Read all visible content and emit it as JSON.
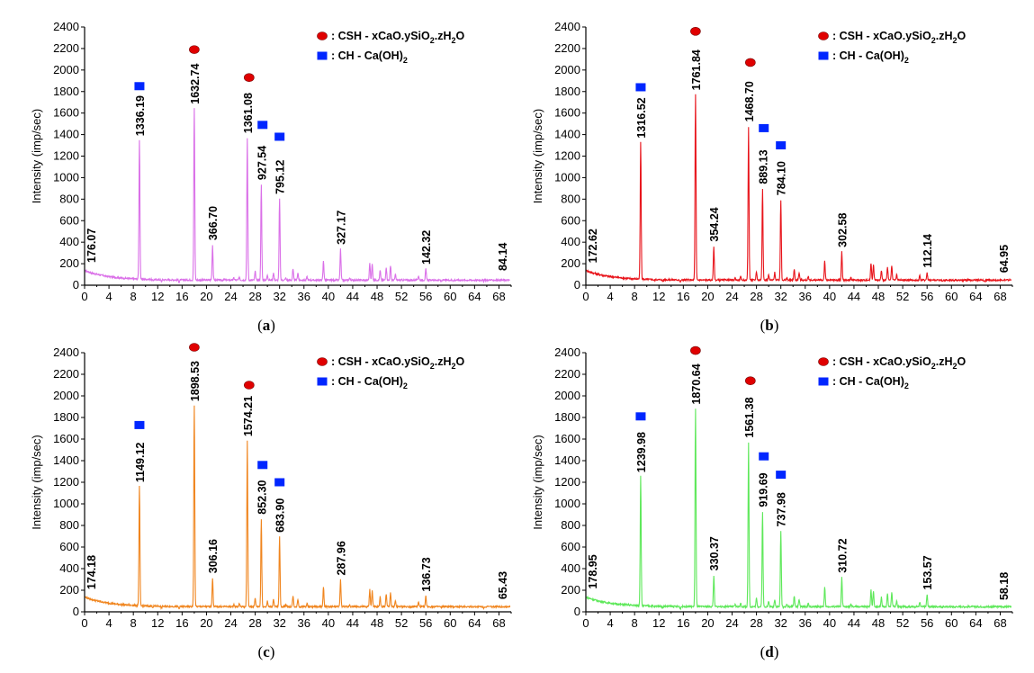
{
  "chart_data": [
    {
      "type": "line",
      "caption_pre": "(",
      "caption_letter": "a",
      "caption_post": ")",
      "color": "#da70e8",
      "ylabel": "Intensity (imp/sec)",
      "xlim": [
        0,
        70
      ],
      "ylim": [
        0,
        2400
      ],
      "xticks": [
        0,
        4,
        8,
        12,
        16,
        20,
        24,
        28,
        32,
        36,
        40,
        44,
        48,
        52,
        56,
        60,
        64,
        68
      ],
      "yticks": [
        0,
        200,
        400,
        600,
        800,
        1000,
        1200,
        1400,
        1600,
        1800,
        2000,
        2200,
        2400
      ],
      "legend": [
        {
          "marker": "csh-circle",
          "color": "#e00000",
          "prefix": ": CSH - xCaO.ySiO",
          "sub1": "2",
          "mid": ".zH",
          "sub2": "2",
          "suffix": "O"
        },
        {
          "marker": "ch-square",
          "color": "#0026ff",
          "prefix": ": CH - Ca(OH)",
          "sub1": "2"
        }
      ],
      "series": [
        {
          "name": "background",
          "peaks": [
            {
              "x": 9.0,
              "y": 1336.19
            },
            {
              "x": 18.0,
              "y": 1632.74
            },
            {
              "x": 21.0,
              "y": 366.7
            },
            {
              "x": 26.7,
              "y": 1361.08
            },
            {
              "x": 29.0,
              "y": 927.54
            },
            {
              "x": 32.0,
              "y": 795.12
            },
            {
              "x": 42.0,
              "y": 327.17
            },
            {
              "x": 56.0,
              "y": 142.32
            },
            {
              "x": 68.5,
              "y": 84.14
            }
          ]
        }
      ],
      "peak_labels": [
        {
          "x": 1.0,
          "y": 176.07,
          "text": "176.07"
        },
        {
          "x": 9.0,
          "y": 1336.19,
          "text": "1336.19"
        },
        {
          "x": 18.0,
          "y": 1632.74,
          "text": "1632.74"
        },
        {
          "x": 21.0,
          "y": 366.7,
          "text": "366.70"
        },
        {
          "x": 26.7,
          "y": 1361.08,
          "text": "1361.08"
        },
        {
          "x": 29.0,
          "y": 927.54,
          "text": "927.54"
        },
        {
          "x": 32.0,
          "y": 795.12,
          "text": "795.12"
        },
        {
          "x": 42.0,
          "y": 327.17,
          "text": "327.17"
        },
        {
          "x": 56.0,
          "y": 142.32,
          "text": "142.32"
        },
        {
          "x": 68.5,
          "y": 84.14,
          "text": "84.14"
        }
      ],
      "markers": [
        {
          "kind": "ch",
          "x": 9.0,
          "y": 1850
        },
        {
          "kind": "csh",
          "x": 18.0,
          "y": 2190
        },
        {
          "kind": "csh",
          "x": 27.0,
          "y": 1930
        },
        {
          "kind": "ch",
          "x": 29.2,
          "y": 1490
        },
        {
          "kind": "ch",
          "x": 32.0,
          "y": 1380
        }
      ]
    },
    {
      "type": "line",
      "caption_pre": "(",
      "caption_letter": "b",
      "caption_post": ")",
      "color": "#e8141b",
      "ylabel": "Intensity (imp/sec)",
      "xlim": [
        0,
        70
      ],
      "ylim": [
        0,
        2400
      ],
      "xticks": [
        0,
        4,
        8,
        12,
        16,
        20,
        24,
        28,
        32,
        36,
        40,
        44,
        48,
        52,
        56,
        60,
        64,
        68
      ],
      "yticks": [
        0,
        200,
        400,
        600,
        800,
        1000,
        1200,
        1400,
        1600,
        1800,
        2000,
        2200,
        2400
      ],
      "legend": [
        {
          "marker": "csh-circle",
          "color": "#e00000",
          "prefix": ": CSH - xCaO.ySiO",
          "sub1": "2",
          "mid": ".zH",
          "sub2": "2",
          "suffix": "O"
        },
        {
          "marker": "ch-square",
          "color": "#0026ff",
          "prefix": ": CH - Ca(OH)",
          "sub1": "2"
        }
      ],
      "series": [
        {
          "name": "background",
          "peaks": [
            {
              "x": 9.0,
              "y": 1316.52
            },
            {
              "x": 18.0,
              "y": 1761.84
            },
            {
              "x": 21.0,
              "y": 354.24
            },
            {
              "x": 26.7,
              "y": 1468.7
            },
            {
              "x": 29.0,
              "y": 889.13
            },
            {
              "x": 32.0,
              "y": 784.1
            },
            {
              "x": 42.0,
              "y": 302.58
            },
            {
              "x": 56.0,
              "y": 112.14
            },
            {
              "x": 68.5,
              "y": 64.95
            }
          ]
        }
      ],
      "peak_labels": [
        {
          "x": 1.0,
          "y": 172.62,
          "text": "172.62"
        },
        {
          "x": 9.0,
          "y": 1316.52,
          "text": "1316.52"
        },
        {
          "x": 18.0,
          "y": 1761.84,
          "text": "1761.84"
        },
        {
          "x": 21.0,
          "y": 354.24,
          "text": "354.24"
        },
        {
          "x": 26.7,
          "y": 1468.7,
          "text": "1468.70"
        },
        {
          "x": 29.0,
          "y": 889.13,
          "text": "889.13"
        },
        {
          "x": 32.0,
          "y": 784.1,
          "text": "784.10"
        },
        {
          "x": 42.0,
          "y": 302.58,
          "text": "302.58"
        },
        {
          "x": 56.0,
          "y": 112.14,
          "text": "112.14"
        },
        {
          "x": 68.5,
          "y": 64.95,
          "text": "64.95"
        }
      ],
      "markers": [
        {
          "kind": "ch",
          "x": 9.0,
          "y": 1840
        },
        {
          "kind": "csh",
          "x": 18.0,
          "y": 2360
        },
        {
          "kind": "csh",
          "x": 27.0,
          "y": 2070
        },
        {
          "kind": "ch",
          "x": 29.2,
          "y": 1460
        },
        {
          "kind": "ch",
          "x": 32.0,
          "y": 1300
        }
      ]
    },
    {
      "type": "line",
      "caption_pre": "(",
      "caption_letter": "c",
      "caption_post": ")",
      "color": "#f0851e",
      "ylabel": "Intensity (imp/sec)",
      "xlim": [
        0,
        70
      ],
      "ylim": [
        0,
        2400
      ],
      "xticks": [
        0,
        4,
        8,
        12,
        16,
        20,
        24,
        28,
        32,
        36,
        40,
        44,
        48,
        52,
        56,
        60,
        64,
        68
      ],
      "yticks": [
        0,
        200,
        400,
        600,
        800,
        1000,
        1200,
        1400,
        1600,
        1800,
        2000,
        2200,
        2400
      ],
      "legend": [
        {
          "marker": "csh-circle",
          "color": "#e00000",
          "prefix": ": CSH - xCaO.ySiO",
          "sub1": "2",
          "mid": ".zH",
          "sub2": "2",
          "suffix": "O"
        },
        {
          "marker": "ch-square",
          "color": "#0026ff",
          "prefix": ": CH - Ca(OH)",
          "sub1": "2"
        }
      ],
      "series": [
        {
          "name": "background",
          "peaks": [
            {
              "x": 9.0,
              "y": 1149.12
            },
            {
              "x": 18.0,
              "y": 1898.53
            },
            {
              "x": 21.0,
              "y": 306.16
            },
            {
              "x": 26.7,
              "y": 1574.21
            },
            {
              "x": 29.0,
              "y": 852.3
            },
            {
              "x": 32.0,
              "y": 683.9
            },
            {
              "x": 42.0,
              "y": 287.96
            },
            {
              "x": 56.0,
              "y": 136.73
            },
            {
              "x": 68.5,
              "y": 65.43
            }
          ]
        }
      ],
      "peak_labels": [
        {
          "x": 1.0,
          "y": 174.18,
          "text": "174.18"
        },
        {
          "x": 9.0,
          "y": 1149.12,
          "text": "1149.12"
        },
        {
          "x": 18.0,
          "y": 1898.53,
          "text": "1898.53"
        },
        {
          "x": 21.0,
          "y": 306.16,
          "text": "306.16"
        },
        {
          "x": 26.7,
          "y": 1574.21,
          "text": "1574.21"
        },
        {
          "x": 29.0,
          "y": 852.3,
          "text": "852.30"
        },
        {
          "x": 32.0,
          "y": 683.9,
          "text": "683.90"
        },
        {
          "x": 42.0,
          "y": 287.96,
          "text": "287.96"
        },
        {
          "x": 56.0,
          "y": 136.73,
          "text": "136.73"
        },
        {
          "x": 68.5,
          "y": 65.43,
          "text": "65.43"
        }
      ],
      "markers": [
        {
          "kind": "ch",
          "x": 9.0,
          "y": 1730
        },
        {
          "kind": "csh",
          "x": 18.0,
          "y": 2450
        },
        {
          "kind": "csh",
          "x": 27.0,
          "y": 2100
        },
        {
          "kind": "ch",
          "x": 29.2,
          "y": 1360
        },
        {
          "kind": "ch",
          "x": 32.0,
          "y": 1200
        }
      ]
    },
    {
      "type": "line",
      "caption_pre": "(",
      "caption_letter": "d",
      "caption_post": ")",
      "color": "#5ee85a",
      "ylabel": "Intensity (imp/sec)",
      "xlim": [
        0,
        70
      ],
      "ylim": [
        0,
        2400
      ],
      "xticks": [
        0,
        4,
        8,
        12,
        16,
        20,
        24,
        28,
        32,
        36,
        40,
        44,
        48,
        52,
        56,
        60,
        64,
        68
      ],
      "yticks": [
        0,
        200,
        400,
        600,
        800,
        1000,
        1200,
        1400,
        1600,
        1800,
        2000,
        2200,
        2400
      ],
      "legend": [
        {
          "marker": "csh-circle",
          "color": "#e00000",
          "prefix": ": CSH - xCaO.ySiO",
          "sub1": "2",
          "mid": ".zH",
          "sub2": "2",
          "suffix": "O"
        },
        {
          "marker": "ch-square",
          "color": "#0026ff",
          "prefix": ": CH - Ca(OH)",
          "sub1": "2"
        }
      ],
      "series": [
        {
          "name": "background",
          "peaks": [
            {
              "x": 9.0,
              "y": 1239.98
            },
            {
              "x": 18.0,
              "y": 1870.64
            },
            {
              "x": 21.0,
              "y": 330.37
            },
            {
              "x": 26.7,
              "y": 1561.38
            },
            {
              "x": 29.0,
              "y": 919.69
            },
            {
              "x": 32.0,
              "y": 737.98
            },
            {
              "x": 42.0,
              "y": 310.72
            },
            {
              "x": 56.0,
              "y": 153.57
            },
            {
              "x": 68.5,
              "y": 58.18
            }
          ]
        }
      ],
      "peak_labels": [
        {
          "x": 1.0,
          "y": 178.95,
          "text": "178.95"
        },
        {
          "x": 9.0,
          "y": 1239.98,
          "text": "1239.98"
        },
        {
          "x": 18.0,
          "y": 1870.64,
          "text": "1870.64"
        },
        {
          "x": 21.0,
          "y": 330.37,
          "text": "330.37"
        },
        {
          "x": 26.7,
          "y": 1561.38,
          "text": "1561.38"
        },
        {
          "x": 29.0,
          "y": 919.69,
          "text": "919.69"
        },
        {
          "x": 32.0,
          "y": 737.98,
          "text": "737.98"
        },
        {
          "x": 42.0,
          "y": 310.72,
          "text": "310.72"
        },
        {
          "x": 56.0,
          "y": 153.57,
          "text": "153.57"
        },
        {
          "x": 68.5,
          "y": 58.18,
          "text": "58.18"
        }
      ],
      "markers": [
        {
          "kind": "ch",
          "x": 9.0,
          "y": 1810
        },
        {
          "kind": "csh",
          "x": 18.0,
          "y": 2420
        },
        {
          "kind": "csh",
          "x": 27.0,
          "y": 2140
        },
        {
          "kind": "ch",
          "x": 29.2,
          "y": 1440
        },
        {
          "kind": "ch",
          "x": 32.0,
          "y": 1270
        }
      ]
    }
  ]
}
